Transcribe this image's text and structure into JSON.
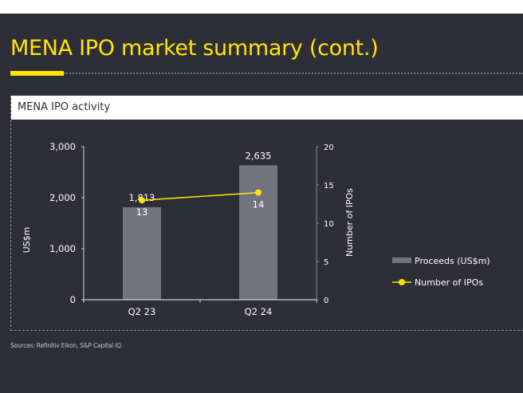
{
  "page": {
    "title": "MENA IPO market summary (cont.)",
    "panel_title": "MENA IPO activity",
    "source": "Sources: Refinitiv Eikon, S&P Capital IQ."
  },
  "colors": {
    "background": "#2e2e38",
    "accent": "#ffe600",
    "bar": "#747480",
    "text": "#ffffff"
  },
  "chart_data": {
    "type": "bar",
    "title": "MENA IPO activity",
    "categories": [
      "Q2 23",
      "Q2 24"
    ],
    "series": [
      {
        "name": "Proceeds (US$m)",
        "type": "bar",
        "axis": "left",
        "values": [
          1813,
          2635
        ],
        "labels": [
          "1,813",
          "2,635"
        ]
      },
      {
        "name": "Number of IPOs",
        "type": "line",
        "axis": "right",
        "values": [
          13,
          14
        ],
        "labels": [
          "13",
          "14"
        ]
      }
    ],
    "ylabel": "US$m",
    "y2label": "Number of IPOs",
    "ylim": [
      0,
      3000
    ],
    "y2lim": [
      0,
      20
    ],
    "yticks": [
      0,
      1000,
      2000,
      3000
    ],
    "ytick_labels": [
      "0",
      "1,000",
      "2,000",
      "3,000"
    ],
    "y2ticks": [
      0,
      5,
      10,
      15,
      20
    ],
    "y2tick_labels": [
      "0",
      "5",
      "10",
      "15",
      "20"
    ],
    "grid": false,
    "legend": {
      "position": "right",
      "entries": [
        "Proceeds (US$m)",
        "Number of IPOs"
      ]
    }
  }
}
